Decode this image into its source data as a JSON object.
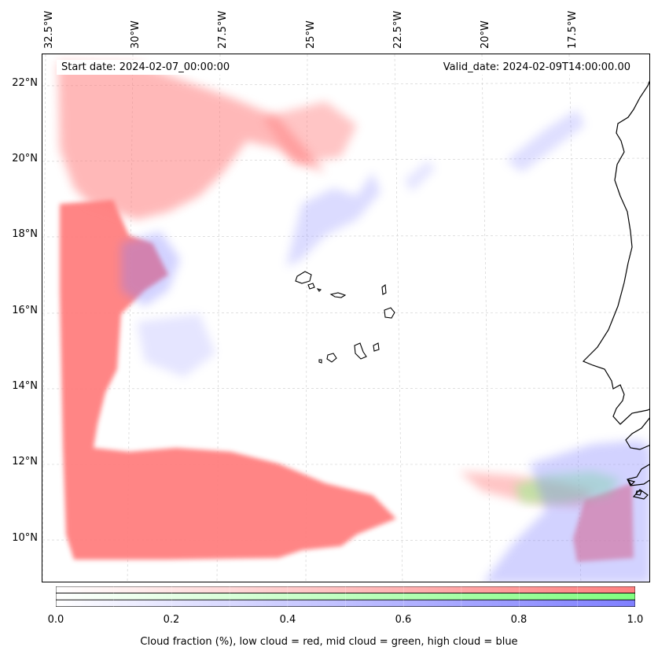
{
  "map": {
    "start_date": "Start date: 2024-02-07_00:00:00",
    "valid_date": "Valid_date: 2024-02-09T14:00:00.00",
    "lon_labels": [
      "32.5°W",
      "30°W",
      "27.5°W",
      "25°W",
      "22.5°W",
      "20°W",
      "17.5°W"
    ],
    "lat_labels": [
      "22°N",
      "20°N",
      "18°N",
      "16°N",
      "14°N",
      "12°N",
      "10°N"
    ],
    "colors": {
      "low_cloud": "#ff7f7f",
      "mid_cloud": "#7fff7f",
      "high_cloud": "#7f7fff",
      "coastline": "#000000"
    }
  },
  "colorbar": {
    "ticks": [
      "0.0",
      "0.2",
      "0.4",
      "0.6",
      "0.8",
      "1.0"
    ],
    "caption": "Cloud fraction (%), low cloud = red, mid cloud = green, high cloud = blue"
  }
}
